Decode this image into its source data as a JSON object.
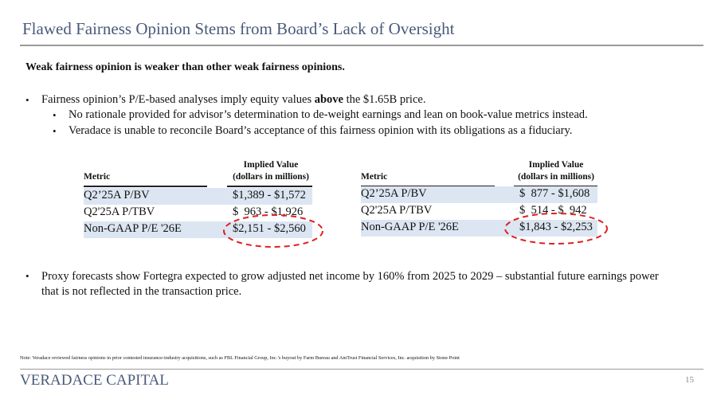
{
  "header": {
    "title": "Flawed Fairness Opinion Stems from Board’s Lack of Oversight"
  },
  "subtitle": "Weak fairness opinion is weaker than other weak fairness opinions.",
  "bullets": [
    {
      "parts": [
        "Fairness opinion’s P/E-based analyses imply equity values ",
        "above",
        " the $1.65B price."
      ],
      "sub": [
        "No rationale provided for advisor’s determination to de-weight earnings and lean on book-value metrics instead.",
        "Veradace is unable to reconcile Board’s acceptance of this fairness opinion with its obligations as a fiduciary."
      ]
    },
    {
      "text": "Proxy forecasts show Fortegra expected to grow adjusted net income by 160% from 2025 to 2029 – substantial future earnings power that is not reflected in the transaction price."
    }
  ],
  "tables": [
    {
      "header": [
        "Metric",
        "Implied Value",
        "(dollars in millions)"
      ],
      "rows": [
        [
          "Q2’25A P/BV",
          "$1,389 - $1,572"
        ],
        [
          "Q2'25A P/TBV",
          "$  963 - $1,926"
        ],
        [
          "Non-GAAP P/E '26E",
          "$2,151 - $2,560"
        ]
      ]
    },
    {
      "header": [
        "Metric",
        "Implied Value",
        "(dollars in millions)"
      ],
      "rows": [
        [
          "Q2’25A P/BV",
          "$  877 - $1,608"
        ],
        [
          "Q2'25A P/TBV",
          "$  514 - $  942"
        ],
        [
          "Non-GAAP P/E '26E",
          "$1,843 - $2,253"
        ]
      ]
    }
  ],
  "note": "Note: Veradace reviewed fairness opinions in prior contested insurance-industry acquisitions, such as FBL Financial Group, Inc.’s buyout by Farm Bureau and AmTrust Financial Services, Inc. acquisition by Stone Point",
  "footer": {
    "brand": "VERADACE CAPITAL",
    "page": "15"
  }
}
